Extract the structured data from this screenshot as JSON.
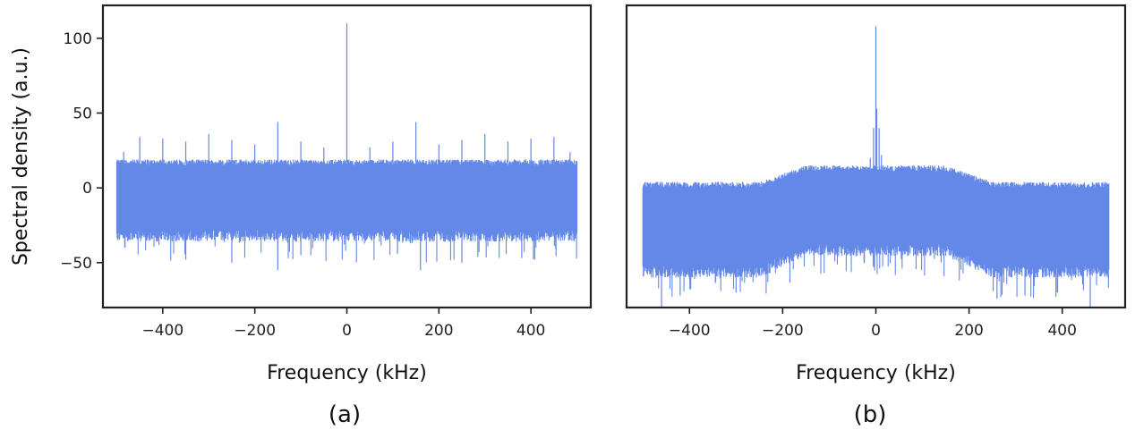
{
  "figure": {
    "colors": {
      "series": "#6488e8",
      "axes": "#222222",
      "background": "#ffffff"
    }
  },
  "chart_data": [
    {
      "type": "line",
      "panel_label": "(a)",
      "xlabel": "Frequency (kHz)",
      "ylabel": "Spectral density (a.u.)",
      "xlim": [
        -530,
        530
      ],
      "ylim": [
        -80,
        122
      ],
      "x_ticks": [
        -400,
        -200,
        0,
        200,
        400
      ],
      "x_tick_labels": [
        "−400",
        "−200",
        "0",
        "200",
        "400"
      ],
      "y_ticks": [
        -50,
        0,
        50,
        100
      ],
      "y_tick_labels": [
        "−50",
        "0",
        "50",
        "100"
      ],
      "grid": false,
      "series": [
        {
          "x_range": [
            -500,
            500
          ],
          "noise_band": {
            "upper": 17,
            "lower": -28,
            "min_dip": -55
          },
          "band_envelope": [
            [
              -500,
              17
            ],
            [
              500,
              17
            ]
          ],
          "peaks": [
            {
              "x": 0,
              "y": 110
            },
            {
              "x": -150,
              "y": 44
            },
            {
              "x": 150,
              "y": 44
            },
            {
              "x": -300,
              "y": 36
            },
            {
              "x": 300,
              "y": 36
            },
            {
              "x": -450,
              "y": 34
            },
            {
              "x": 450,
              "y": 34
            },
            {
              "x": -400,
              "y": 33
            },
            {
              "x": 400,
              "y": 33
            },
            {
              "x": -250,
              "y": 32
            },
            {
              "x": 250,
              "y": 32
            },
            {
              "x": -350,
              "y": 31
            },
            {
              "x": 350,
              "y": 31
            },
            {
              "x": -100,
              "y": 31
            },
            {
              "x": 100,
              "y": 31
            },
            {
              "x": -200,
              "y": 29
            },
            {
              "x": 200,
              "y": 29
            },
            {
              "x": -50,
              "y": 27
            },
            {
              "x": 50,
              "y": 27
            },
            {
              "x": -485,
              "y": 24
            },
            {
              "x": 485,
              "y": 24
            }
          ],
          "dips": [
            {
              "x": -150,
              "y": -55
            },
            {
              "x": 160,
              "y": -55
            },
            {
              "x": -250,
              "y": -50
            },
            {
              "x": 250,
              "y": -50
            },
            {
              "x": -350,
              "y": -48
            },
            {
              "x": 380,
              "y": -47
            },
            {
              "x": -100,
              "y": -45
            },
            {
              "x": 110,
              "y": -44
            }
          ]
        }
      ]
    },
    {
      "type": "line",
      "panel_label": "(b)",
      "xlabel": "Frequency (kHz)",
      "ylabel": "",
      "xlim": [
        -535,
        535
      ],
      "ylim": [
        -80,
        122
      ],
      "x_ticks": [
        -400,
        -200,
        0,
        200,
        400
      ],
      "x_tick_labels": [
        "−400",
        "−200",
        "0",
        "200",
        "400"
      ],
      "y_ticks": [],
      "y_tick_labels": [],
      "grid": false,
      "series": [
        {
          "x_range": [
            -500,
            500
          ],
          "noise_band": {
            "upper_edges": 2,
            "upper_center": 15,
            "lower_edges": -52,
            "lower_center": -35,
            "min_dip": -80
          },
          "band_envelope": [
            [
              -500,
              2
            ],
            [
              -250,
              2
            ],
            [
              -150,
              13
            ],
            [
              150,
              13
            ],
            [
              250,
              2
            ],
            [
              500,
              2
            ]
          ],
          "peaks": [
            {
              "x": 0,
              "y": 108
            },
            {
              "x": 2,
              "y": 53
            },
            {
              "x": -5,
              "y": 40
            },
            {
              "x": 7,
              "y": 40
            },
            {
              "x": -12,
              "y": 20
            },
            {
              "x": 12,
              "y": 22
            }
          ],
          "dips": [
            {
              "x": -460,
              "y": -80
            },
            {
              "x": 460,
              "y": -80
            },
            {
              "x": -420,
              "y": -72
            },
            {
              "x": 260,
              "y": -74
            },
            {
              "x": -300,
              "y": -70
            },
            {
              "x": 320,
              "y": -72
            },
            {
              "x": 390,
              "y": -70
            }
          ]
        }
      ]
    }
  ]
}
